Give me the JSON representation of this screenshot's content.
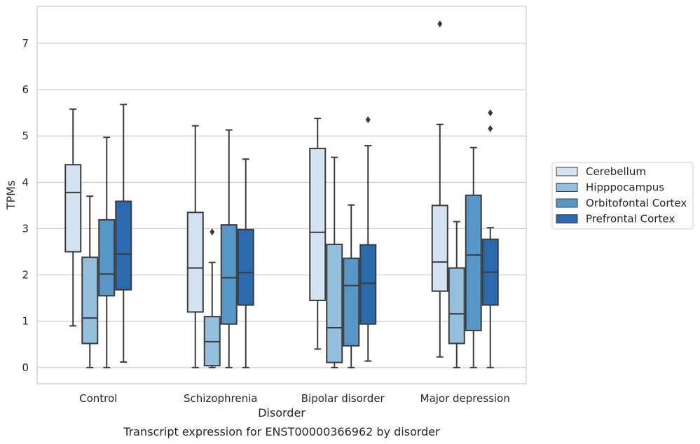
{
  "chart_data": {
    "type": "box",
    "title": "",
    "caption": "Transcript expression for ENST00000366962 by disorder",
    "xlabel": "Disorder",
    "ylabel": "TPMs",
    "ylim": [
      -0.35,
      7.8
    ],
    "yticks": [
      0,
      1,
      2,
      3,
      4,
      5,
      6,
      7
    ],
    "grid": "horizontal",
    "legend_position": "right",
    "categories": [
      "Control",
      "Schizophrenia",
      "Bipolar disorder",
      "Major depression"
    ],
    "series": [
      {
        "name": "Cerebellum",
        "color": "#d4e2f1",
        "boxes": [
          {
            "whislo": 0.9,
            "q1": 2.5,
            "med": 3.78,
            "q3": 4.38,
            "whishi": 5.58,
            "fliers": []
          },
          {
            "whislo": 0.0,
            "q1": 1.2,
            "med": 2.15,
            "q3": 3.35,
            "whishi": 5.22,
            "fliers": []
          },
          {
            "whislo": 0.4,
            "q1": 1.45,
            "med": 2.92,
            "q3": 4.73,
            "whishi": 5.38,
            "fliers": []
          },
          {
            "whislo": 0.23,
            "q1": 1.65,
            "med": 2.28,
            "q3": 3.5,
            "whishi": 5.25,
            "fliers": [
              7.42
            ]
          }
        ]
      },
      {
        "name": "Hipppocampus",
        "color": "#94c0de",
        "boxes": [
          {
            "whislo": 0.0,
            "q1": 0.52,
            "med": 1.07,
            "q3": 2.38,
            "whishi": 3.7,
            "fliers": []
          },
          {
            "whislo": 0.0,
            "q1": 0.04,
            "med": 0.56,
            "q3": 1.1,
            "whishi": 2.27,
            "fliers": [
              2.93
            ]
          },
          {
            "whislo": 0.0,
            "q1": 0.11,
            "med": 0.86,
            "q3": 2.66,
            "whishi": 4.54,
            "fliers": []
          },
          {
            "whislo": 0.0,
            "q1": 0.52,
            "med": 1.16,
            "q3": 2.15,
            "whishi": 3.15,
            "fliers": []
          }
        ]
      },
      {
        "name": "Orbitofontal Cortex",
        "color": "#5697c8",
        "boxes": [
          {
            "whislo": 0.0,
            "q1": 1.55,
            "med": 2.02,
            "q3": 3.19,
            "whishi": 4.97,
            "fliers": []
          },
          {
            "whislo": 0.0,
            "q1": 0.94,
            "med": 1.94,
            "q3": 3.08,
            "whishi": 5.13,
            "fliers": []
          },
          {
            "whislo": 0.0,
            "q1": 0.47,
            "med": 1.77,
            "q3": 2.36,
            "whishi": 3.51,
            "fliers": []
          },
          {
            "whislo": 0.0,
            "q1": 0.8,
            "med": 2.43,
            "q3": 3.72,
            "whishi": 4.75,
            "fliers": []
          }
        ]
      },
      {
        "name": "Prefrontal Cortex",
        "color": "#2a6aad",
        "boxes": [
          {
            "whislo": 0.12,
            "q1": 1.68,
            "med": 2.45,
            "q3": 3.59,
            "whishi": 5.68,
            "fliers": []
          },
          {
            "whislo": 0.0,
            "q1": 1.35,
            "med": 2.05,
            "q3": 2.98,
            "whishi": 4.5,
            "fliers": []
          },
          {
            "whislo": 0.14,
            "q1": 0.94,
            "med": 1.82,
            "q3": 2.65,
            "whishi": 4.79,
            "fliers": [
              5.35
            ]
          },
          {
            "whislo": 0.0,
            "q1": 1.35,
            "med": 2.06,
            "q3": 2.77,
            "whishi": 3.02,
            "fliers": [
              5.16,
              5.5
            ]
          }
        ]
      }
    ]
  }
}
